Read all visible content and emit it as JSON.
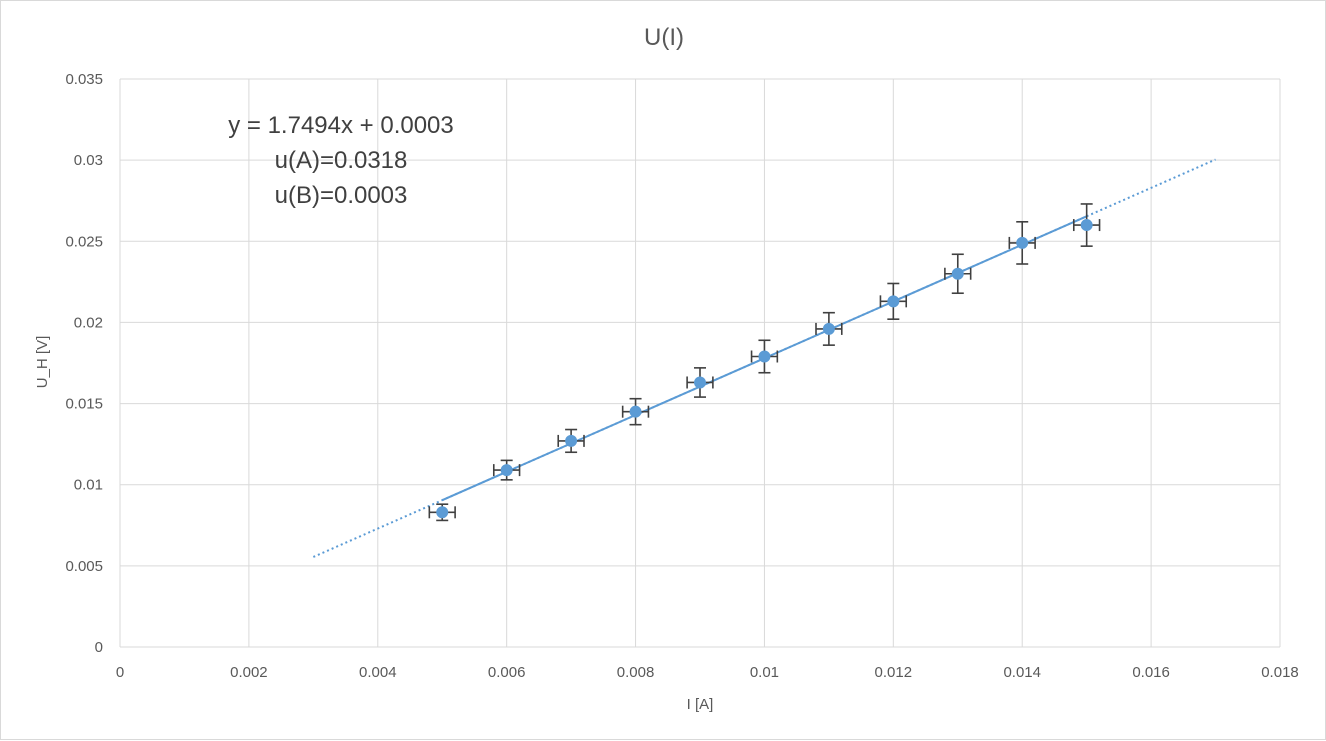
{
  "chart_data": {
    "type": "scatter",
    "title": "U(I)",
    "xlabel": "I [A]",
    "ylabel": "U_H [V]",
    "xlim": [
      0,
      0.018
    ],
    "ylim": [
      0,
      0.035
    ],
    "x_ticks": [
      0,
      0.002,
      0.004,
      0.006,
      0.008,
      0.01,
      0.012,
      0.014,
      0.016,
      0.018
    ],
    "y_ticks": [
      0,
      0.005,
      0.01,
      0.015,
      0.02,
      0.025,
      0.03,
      0.035
    ],
    "x_tick_labels": [
      "0",
      "0.002",
      "0.004",
      "0.006",
      "0.008",
      "0.01",
      "0.012",
      "0.014",
      "0.016",
      "0.018"
    ],
    "y_tick_labels": [
      "0",
      "0.005",
      "0.01",
      "0.015",
      "0.02",
      "0.025",
      "0.03",
      "0.035"
    ],
    "grid": true,
    "series": [
      {
        "x": [
          0.005,
          0.006,
          0.007,
          0.008,
          0.009,
          0.01,
          0.011,
          0.012,
          0.013,
          0.014,
          0.015
        ],
        "y": [
          0.0083,
          0.0109,
          0.0127,
          0.0145,
          0.0163,
          0.0179,
          0.0196,
          0.0213,
          0.023,
          0.0249,
          0.026
        ],
        "x_err": [
          0.0002,
          0.0002,
          0.0002,
          0.0002,
          0.0002,
          0.0002,
          0.0002,
          0.0002,
          0.0002,
          0.0002,
          0.0002
        ],
        "y_err": [
          0.0005,
          0.0006,
          0.0007,
          0.0008,
          0.0009,
          0.001,
          0.001,
          0.0011,
          0.0012,
          0.0013,
          0.0013
        ]
      }
    ],
    "trendline": {
      "slope": 1.7494,
      "intercept": 0.0003,
      "x_range": [
        0.003,
        0.017
      ],
      "fit_range": [
        0.005,
        0.015
      ],
      "style": "dotted"
    },
    "annotations": [
      "y = 1.7494x + 0.0003",
      "u(A)=0.0318",
      "u(B)=0.0003"
    ],
    "colors": {
      "marker": "#5b9bd5",
      "trendline": "#5b9bd5",
      "error_bar": "#404040",
      "grid": "#d9d9d9",
      "text": "#595959"
    }
  }
}
